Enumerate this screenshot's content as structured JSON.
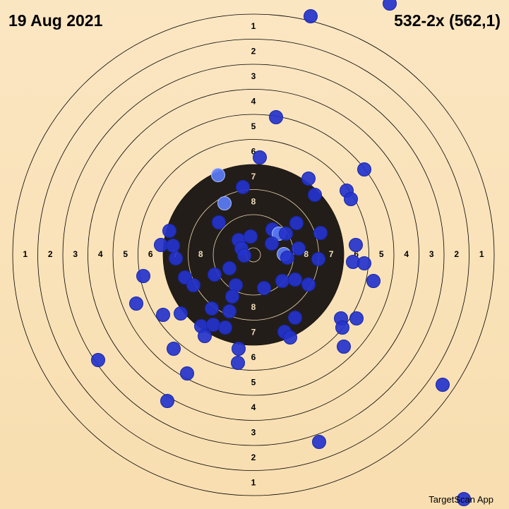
{
  "header": {
    "date": "19 Aug 2021",
    "score": "532-2x (562,1)"
  },
  "target": {
    "ring_labels": [
      1,
      2,
      3,
      4,
      5,
      6,
      7,
      8
    ]
  },
  "footer": {
    "app": "TargetScan App"
  }
}
